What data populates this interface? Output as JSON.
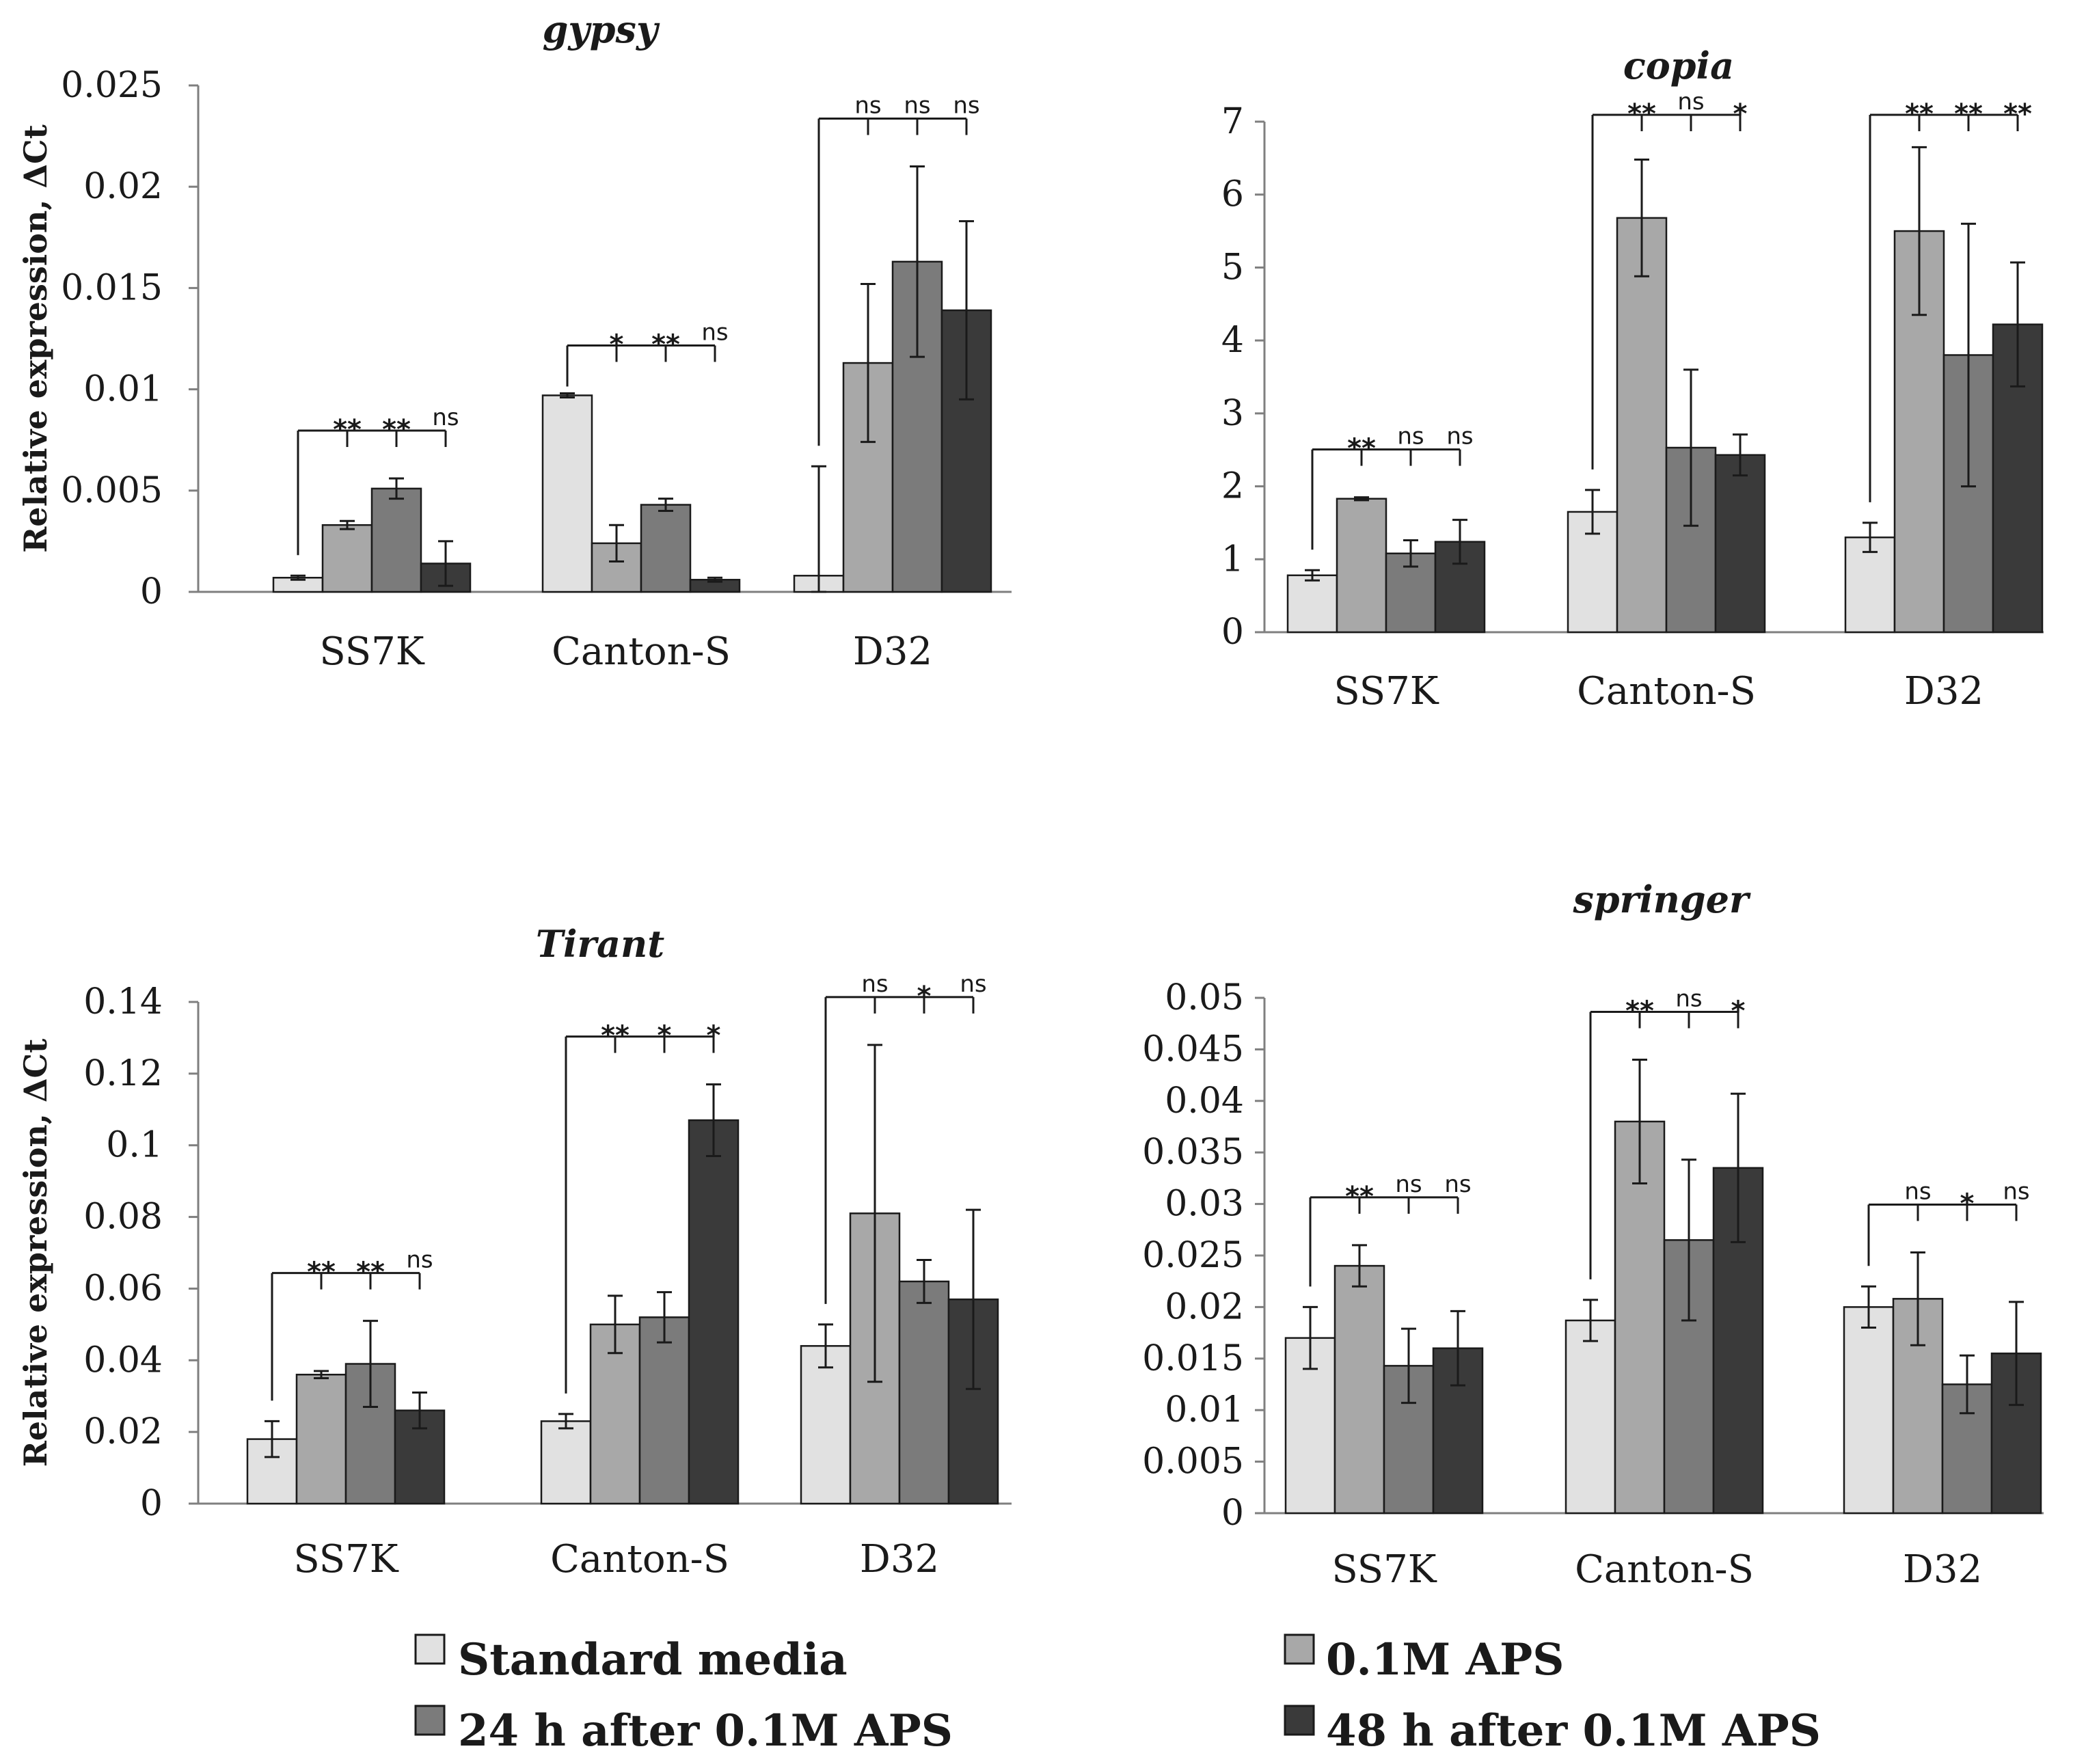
{
  "series_names": [
    "Standard media",
    "0.1M APS",
    "24 h after 0.1M APS",
    "48 h after 0.1M APS"
  ],
  "series_colors": [
    "#e1e1e1",
    "#a8a8a8",
    "#7b7b7b",
    "#3a3a3a"
  ],
  "categories": [
    "SS7K",
    "Canton-S",
    "D32"
  ],
  "legend": {
    "items": [
      "Standard media",
      "0.1M APS",
      "24 h after 0.1M APS",
      "48 h after 0.1M APS"
    ]
  },
  "chart_data": [
    {
      "type": "bar",
      "title": "gypsy",
      "ylabel": "Relative expression, ΔCt",
      "xlabel": "",
      "ylim": [
        0,
        0.025
      ],
      "yticks": [
        "0",
        "0.005",
        "0.01",
        "0.015",
        "0.02",
        "0.025"
      ],
      "categories": [
        "SS7K",
        "Canton-S",
        "D32"
      ],
      "series": [
        {
          "name": "Standard media",
          "values": [
            0.0007,
            0.0097,
            0.0008
          ],
          "errors": [
            0.0001,
            0.0001,
            0.0054
          ]
        },
        {
          "name": "0.1M APS",
          "values": [
            0.0033,
            0.0024,
            0.0113
          ],
          "errors": [
            0.0002,
            0.0009,
            0.0039
          ]
        },
        {
          "name": "24 h after 0.1M APS",
          "values": [
            0.0051,
            0.0043,
            0.0163
          ],
          "errors": [
            0.0005,
            0.0003,
            0.0047
          ]
        },
        {
          "name": "48 h after 0.1M APS",
          "values": [
            0.0014,
            0.0006,
            0.0139
          ],
          "errors": [
            0.0011,
            0.0001,
            0.0044
          ]
        }
      ],
      "significance": [
        [
          "**",
          "**",
          "ns"
        ],
        [
          "*",
          "**",
          "ns"
        ],
        [
          "ns",
          "ns",
          "ns"
        ]
      ]
    },
    {
      "type": "bar",
      "title": "copia",
      "ylabel": "",
      "xlabel": "",
      "ylim": [
        0,
        7
      ],
      "yticks": [
        "0",
        "1",
        "2",
        "3",
        "4",
        "5",
        "6",
        "7"
      ],
      "categories": [
        "SS7K",
        "Canton-S",
        "D32"
      ],
      "series": [
        {
          "name": "Standard media",
          "values": [
            0.78,
            1.65,
            1.3
          ],
          "errors": [
            0.07,
            0.3,
            0.2
          ]
        },
        {
          "name": "0.1M APS",
          "values": [
            1.83,
            5.68,
            5.5
          ],
          "errors": [
            0.02,
            0.8,
            1.15
          ]
        },
        {
          "name": "24 h after 0.1M APS",
          "values": [
            1.08,
            2.53,
            3.8
          ],
          "errors": [
            0.18,
            1.07,
            1.8
          ]
        },
        {
          "name": "48 h after 0.1M APS",
          "values": [
            1.24,
            2.43,
            4.22
          ],
          "errors": [
            0.3,
            0.28,
            0.85
          ]
        }
      ],
      "significance": [
        [
          "**",
          "ns",
          "ns"
        ],
        [
          "**",
          "ns",
          "*"
        ],
        [
          "**",
          "**",
          "**"
        ]
      ]
    },
    {
      "type": "bar",
      "title": "Tirant",
      "ylabel": "Relative expression, ΔCt",
      "xlabel": "",
      "ylim": [
        0,
        0.14
      ],
      "yticks": [
        "0",
        "0.02",
        "0.04",
        "0.06",
        "0.08",
        "0.1",
        "0.12",
        "0.14"
      ],
      "categories": [
        "SS7K",
        "Canton-S",
        "D32"
      ],
      "series": [
        {
          "name": "Standard media",
          "values": [
            0.018,
            0.023,
            0.044
          ],
          "errors": [
            0.005,
            0.002,
            0.006
          ]
        },
        {
          "name": "0.1M APS",
          "values": [
            0.036,
            0.05,
            0.081
          ],
          "errors": [
            0.001,
            0.008,
            0.047
          ]
        },
        {
          "name": "24 h after 0.1M APS",
          "values": [
            0.039,
            0.052,
            0.062
          ],
          "errors": [
            0.012,
            0.007,
            0.006
          ]
        },
        {
          "name": "48 h after 0.1M APS",
          "values": [
            0.026,
            0.107,
            0.057
          ],
          "errors": [
            0.005,
            0.01,
            0.025
          ]
        }
      ],
      "significance": [
        [
          "**",
          "**",
          "ns"
        ],
        [
          "**",
          "*",
          "*"
        ],
        [
          "ns",
          "*",
          "ns"
        ]
      ]
    },
    {
      "type": "bar",
      "title": "springer",
      "ylabel": "",
      "xlabel": "",
      "ylim": [
        0,
        0.05
      ],
      "yticks": [
        "0",
        "0.005",
        "0.01",
        "0.015",
        "0.02",
        "0.025",
        "0.03",
        "0.035",
        "0.04",
        "0.045",
        "0.05"
      ],
      "categories": [
        "SS7K",
        "Canton-S",
        "D32"
      ],
      "series": [
        {
          "name": "Standard media",
          "values": [
            0.017,
            0.0187,
            0.02
          ],
          "errors": [
            0.003,
            0.002,
            0.002
          ]
        },
        {
          "name": "0.1M APS",
          "values": [
            0.024,
            0.038,
            0.0208
          ],
          "errors": [
            0.002,
            0.006,
            0.0045
          ]
        },
        {
          "name": "24 h after 0.1M APS",
          "values": [
            0.0143,
            0.0265,
            0.0125
          ],
          "errors": [
            0.0036,
            0.0078,
            0.0028
          ]
        },
        {
          "name": "48 h after 0.1M APS",
          "values": [
            0.016,
            0.0335,
            0.0155
          ],
          "errors": [
            0.0036,
            0.0072,
            0.005
          ]
        }
      ],
      "significance": [
        [
          "**",
          "ns",
          "ns"
        ],
        [
          "**",
          "ns",
          "*"
        ],
        [
          "ns",
          "*",
          "ns"
        ]
      ]
    }
  ]
}
